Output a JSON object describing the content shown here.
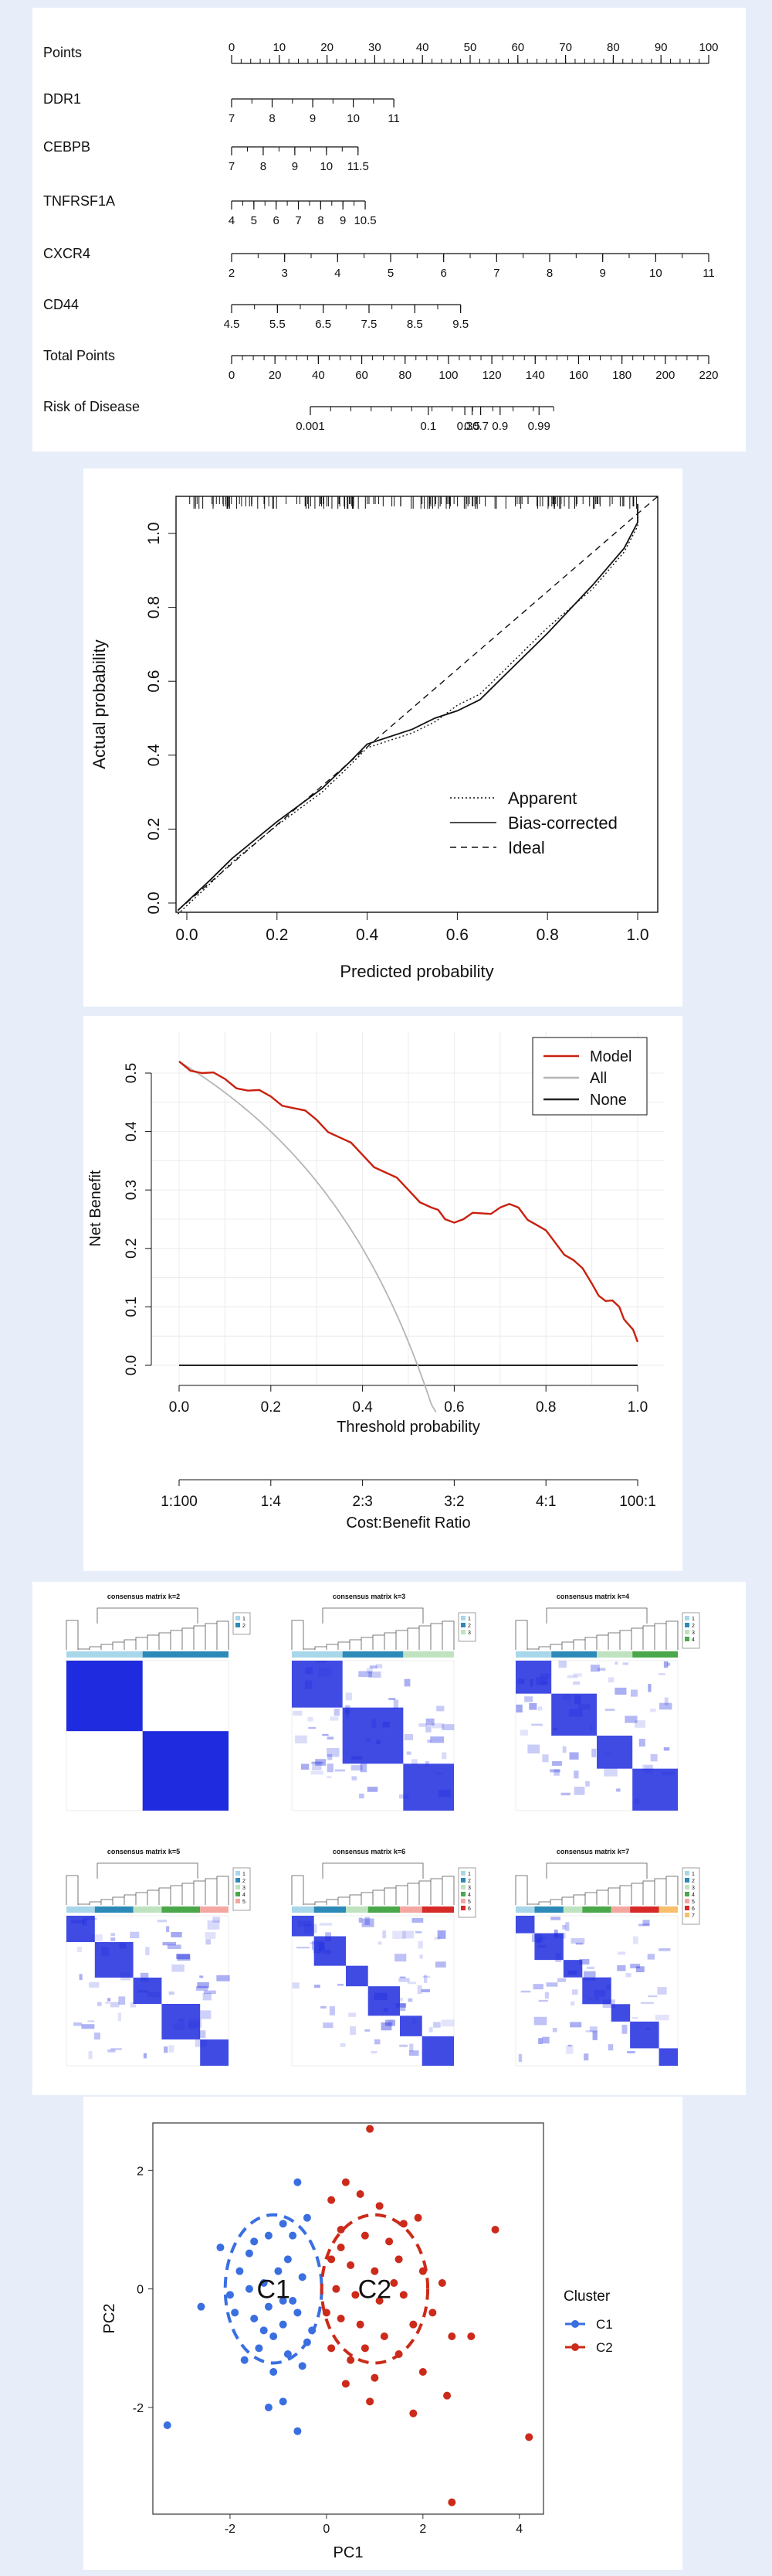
{
  "nomogram": {
    "rows": [
      {
        "label": "Points",
        "ticks": [
          "0",
          "10",
          "20",
          "30",
          "40",
          "50",
          "60",
          "70",
          "80",
          "90",
          "100"
        ]
      },
      {
        "label": "DDR1",
        "ticks": [
          "7",
          "8",
          "9",
          "10",
          "11"
        ]
      },
      {
        "label": "CEBPB",
        "ticks": [
          "7",
          "8",
          "9",
          "10",
          "11.5"
        ]
      },
      {
        "label": "TNFRSF1A",
        "ticks": [
          "4",
          "5",
          "6",
          "7",
          "8",
          "9",
          "10.5"
        ]
      },
      {
        "label": "CXCR4",
        "ticks": [
          "2",
          "3",
          "4",
          "5",
          "6",
          "7",
          "8",
          "9",
          "10",
          "11"
        ]
      },
      {
        "label": "CD44",
        "ticks": [
          "4.5",
          "5.5",
          "6.5",
          "7.5",
          "8.5",
          "9.5"
        ]
      },
      {
        "label": "Total Points",
        "ticks": [
          "0",
          "20",
          "40",
          "60",
          "80",
          "100",
          "120",
          "140",
          "160",
          "180",
          "200",
          "220"
        ]
      },
      {
        "label": "Risk of Disease",
        "ticks": [
          "0.001",
          "0.1",
          "0.3",
          "0.5",
          "0.7",
          "0.9",
          "0.99"
        ]
      }
    ]
  },
  "calibration": {
    "xlabel": "Predicted probability",
    "ylabel": "Actual probability",
    "xticks": [
      "0.0",
      "0.2",
      "0.4",
      "0.6",
      "0.8",
      "1.0"
    ],
    "yticks": [
      "0.0",
      "0.2",
      "0.4",
      "0.6",
      "0.8",
      "1.0"
    ],
    "legend": [
      "Apparent",
      "Bias-corrected",
      "Ideal"
    ]
  },
  "dca": {
    "ylabel": "Net Benefit",
    "xlabel": "Threshold probability",
    "xlabel2": "Cost:Benefit Ratio",
    "xticks": [
      "0.0",
      "0.2",
      "0.4",
      "0.6",
      "0.8",
      "1.0"
    ],
    "yticks": [
      "0.0",
      "0.1",
      "0.2",
      "0.3",
      "0.4",
      "0.5"
    ],
    "ratio_ticks": [
      "1:100",
      "1:4",
      "2:3",
      "3:2",
      "4:1",
      "100:1"
    ],
    "legend": [
      "Model",
      "All",
      "None"
    ],
    "model_color": "#c9200f",
    "all_color": "#b5b5b5",
    "none_color": "#222222"
  },
  "consensus": {
    "titles": [
      "consensus matrix k=2",
      "consensus matrix k=3",
      "consensus matrix k=4",
      "consensus matrix k=5",
      "consensus matrix k=6",
      "consensus matrix k=7"
    ],
    "color": "#1f2bde"
  },
  "chart_data": {
    "type": "scatter",
    "title": "",
    "xlabel": "PC1",
    "ylabel": "PC2",
    "xticks": [
      "-2",
      "0",
      "2",
      "4"
    ],
    "yticks": [
      "2",
      "0",
      "-2"
    ],
    "xlim": [
      -3.6,
      4.5
    ],
    "ylim": [
      -3.8,
      2.8
    ],
    "legend_title": "Cluster",
    "series": [
      {
        "name": "C1",
        "label": "C1",
        "color": "#3a6fe0",
        "points": [
          [
            -1.5,
            0.8
          ],
          [
            -1.2,
            0.9
          ],
          [
            -0.9,
            1.1
          ],
          [
            -0.6,
            1.8
          ],
          [
            -1.8,
            0.3
          ],
          [
            -1.6,
            0.0
          ],
          [
            -1.3,
            0.1
          ],
          [
            -1.0,
            0.3
          ],
          [
            -0.8,
            0.5
          ],
          [
            -0.5,
            0.2
          ],
          [
            -1.9,
            -0.4
          ],
          [
            -1.5,
            -0.5
          ],
          [
            -1.2,
            -0.3
          ],
          [
            -0.9,
            -0.6
          ],
          [
            -0.6,
            -0.4
          ],
          [
            -0.3,
            -0.7
          ],
          [
            -1.7,
            -1.2
          ],
          [
            -1.4,
            -1.0
          ],
          [
            -1.1,
            -1.4
          ],
          [
            -0.8,
            -1.1
          ],
          [
            -0.5,
            -1.3
          ],
          [
            -1.2,
            -2.0
          ],
          [
            -0.9,
            -1.9
          ],
          [
            -0.6,
            -2.4
          ],
          [
            -3.3,
            -2.3
          ],
          [
            -2.6,
            -0.3
          ],
          [
            -2.2,
            0.7
          ],
          [
            -1.1,
            -0.8
          ],
          [
            -0.7,
            -0.2
          ],
          [
            -0.4,
            -0.9
          ],
          [
            -1.3,
            -0.7
          ],
          [
            -2.0,
            -0.1
          ],
          [
            -0.7,
            0.9
          ],
          [
            -0.4,
            1.2
          ],
          [
            -1.6,
            0.6
          ],
          [
            -0.9,
            -0.2
          ]
        ]
      },
      {
        "name": "C2",
        "label": "C2",
        "color": "#cc2a1a",
        "points": [
          [
            0.9,
            2.7
          ],
          [
            0.4,
            1.8
          ],
          [
            0.1,
            1.5
          ],
          [
            0.7,
            1.6
          ],
          [
            1.1,
            1.4
          ],
          [
            1.6,
            1.1
          ],
          [
            0.3,
            1.0
          ],
          [
            0.8,
            0.9
          ],
          [
            1.3,
            0.8
          ],
          [
            1.9,
            1.2
          ],
          [
            0.1,
            0.5
          ],
          [
            0.5,
            0.4
          ],
          [
            1.0,
            0.3
          ],
          [
            1.5,
            0.5
          ],
          [
            2.0,
            0.3
          ],
          [
            2.4,
            0.1
          ],
          [
            0.2,
            0.0
          ],
          [
            0.6,
            -0.1
          ],
          [
            1.1,
            -0.2
          ],
          [
            1.6,
            -0.1
          ],
          [
            2.2,
            -0.4
          ],
          [
            0.3,
            -0.5
          ],
          [
            0.7,
            -0.6
          ],
          [
            1.2,
            -0.8
          ],
          [
            1.8,
            -0.6
          ],
          [
            0.1,
            -1.0
          ],
          [
            0.5,
            -1.2
          ],
          [
            1.0,
            -1.5
          ],
          [
            1.5,
            -1.1
          ],
          [
            2.0,
            -1.4
          ],
          [
            0.4,
            -1.6
          ],
          [
            0.9,
            -1.9
          ],
          [
            1.8,
            -2.1
          ],
          [
            3.5,
            1.0
          ],
          [
            3.0,
            -0.8
          ],
          [
            2.6,
            -0.8
          ],
          [
            4.2,
            -2.5
          ],
          [
            2.6,
            -3.6
          ],
          [
            0.0,
            -0.4
          ],
          [
            0.3,
            0.7
          ],
          [
            1.4,
            0.1
          ],
          [
            0.8,
            -1.0
          ],
          [
            2.5,
            -1.8
          ]
        ]
      }
    ]
  }
}
